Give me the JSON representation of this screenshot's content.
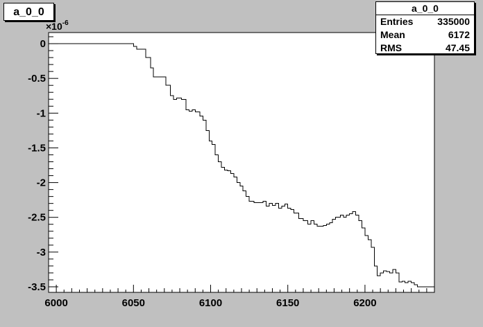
{
  "title": "a_0_0",
  "stats": {
    "name": "a_0_0",
    "rows": [
      {
        "label": "Entries",
        "value": "335000"
      },
      {
        "label": "Mean",
        "value": "6172"
      },
      {
        "label": "RMS",
        "value": "47.45"
      }
    ]
  },
  "axis": {
    "exponent_base": "×10",
    "exponent_power": "-6"
  },
  "chart_data": {
    "type": "line",
    "title": "a_0_0",
    "xlabel": "",
    "ylabel": "",
    "xlim": [
      5995,
      6245
    ],
    "ylim": [
      -3.58,
      0.16
    ],
    "x_ticks": [
      6000,
      6050,
      6100,
      6150,
      6200
    ],
    "x_tick_labels": [
      "6000",
      "6050",
      "6100",
      "6150",
      "6200"
    ],
    "y_ticks": [
      0,
      -0.5,
      -1,
      -1.5,
      -2,
      -2.5,
      -3,
      -3.5
    ],
    "y_tick_labels": [
      "0",
      "-0.5",
      "-1",
      "-1.5",
      "-2",
      "-2.5",
      "-3",
      "-3.5"
    ],
    "y_scale_exponent": -6,
    "grid": false,
    "legend": "none",
    "line_color": "#000000",
    "series": [
      {
        "step": true,
        "x": [
          5995,
          6050,
          6052,
          6058,
          6061,
          6063,
          6068,
          6071,
          6074,
          6076,
          6078,
          6081,
          6084,
          6086,
          6088,
          6090,
          6093,
          6095,
          6097,
          6099,
          6101,
          6103,
          6105,
          6107,
          6109,
          6111,
          6113,
          6115,
          6117,
          6119,
          6121,
          6123,
          6125,
          6128,
          6131,
          6134,
          6136,
          6138,
          6140,
          6142,
          6144,
          6146,
          6148,
          6150,
          6152,
          6154,
          6157,
          6160,
          6163,
          6165,
          6167,
          6169,
          6171,
          6173,
          6175,
          6177,
          6179,
          6181,
          6184,
          6186,
          6188,
          6190,
          6192,
          6194,
          6196,
          6198,
          6200,
          6202,
          6204,
          6206,
          6208,
          6210,
          6212,
          6214,
          6216,
          6218,
          6220,
          6222,
          6224,
          6226,
          6228,
          6230,
          6232,
          6234,
          6236,
          6238,
          6240
        ],
        "y": [
          0,
          -0.04,
          -0.08,
          -0.2,
          -0.35,
          -0.48,
          -0.48,
          -0.6,
          -0.75,
          -0.8,
          -0.78,
          -0.8,
          -0.95,
          -0.97,
          -0.95,
          -0.98,
          -1.04,
          -1.1,
          -1.25,
          -1.4,
          -1.45,
          -1.6,
          -1.7,
          -1.78,
          -1.82,
          -1.83,
          -1.87,
          -1.92,
          -2.0,
          -2.05,
          -2.12,
          -2.2,
          -2.27,
          -2.29,
          -2.29,
          -2.27,
          -2.34,
          -2.3,
          -2.33,
          -2.3,
          -2.37,
          -2.34,
          -2.31,
          -2.37,
          -2.39,
          -2.44,
          -2.52,
          -2.55,
          -2.6,
          -2.55,
          -2.6,
          -2.63,
          -2.63,
          -2.62,
          -2.6,
          -2.58,
          -2.53,
          -2.5,
          -2.47,
          -2.5,
          -2.47,
          -2.45,
          -2.42,
          -2.47,
          -2.55,
          -2.65,
          -2.76,
          -2.82,
          -2.93,
          -3.2,
          -3.34,
          -3.3,
          -3.27,
          -3.28,
          -3.3,
          -3.25,
          -3.3,
          -3.43,
          -3.42,
          -3.44,
          -3.42,
          -3.44,
          -3.47,
          -3.5,
          -3.5,
          -3.5,
          -3.5
        ]
      }
    ]
  }
}
